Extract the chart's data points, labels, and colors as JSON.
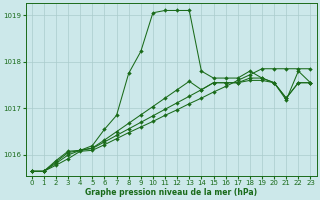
{
  "background_color": "#cce8ea",
  "grid_color": "#aacccc",
  "line_color": "#1a6b1a",
  "marker_color": "#1a6b1a",
  "title": "Graphe pression niveau de la mer (hPa)",
  "x_ticks": [
    0,
    1,
    2,
    3,
    4,
    5,
    6,
    7,
    8,
    9,
    10,
    11,
    12,
    13,
    14,
    15,
    16,
    17,
    18,
    19,
    20,
    21,
    22,
    23
  ],
  "y_ticks": [
    1016,
    1017,
    1018,
    1019
  ],
  "ylim": [
    1015.55,
    1019.25
  ],
  "xlim": [
    -0.5,
    23.5
  ],
  "s1": [
    1015.65,
    1015.65,
    1015.78,
    1015.92,
    1016.08,
    1016.1,
    1016.22,
    1016.35,
    1016.48,
    1016.6,
    1016.72,
    1016.85,
    1016.97,
    1017.1,
    1017.22,
    1017.35,
    1017.47,
    1017.6,
    1017.72,
    1017.85,
    1017.85,
    1017.85,
    1017.85,
    1017.85
  ],
  "s2": [
    1015.65,
    1015.65,
    1015.82,
    1016.0,
    1016.1,
    1016.14,
    1016.28,
    1016.42,
    1016.56,
    1016.7,
    1016.84,
    1016.98,
    1017.12,
    1017.26,
    1017.4,
    1017.55,
    1017.55,
    1017.55,
    1017.6,
    1017.6,
    1017.55,
    1017.22,
    1017.55,
    1017.55
  ],
  "s3": [
    1015.65,
    1015.65,
    1015.85,
    1016.05,
    1016.1,
    1016.15,
    1016.32,
    1016.5,
    1016.68,
    1016.86,
    1017.04,
    1017.22,
    1017.4,
    1017.58,
    1017.4,
    1017.55,
    1017.55,
    1017.55,
    1017.65,
    1017.65,
    1017.55,
    1017.22,
    1017.55,
    1017.55
  ],
  "s4": [
    1015.65,
    1015.65,
    1015.88,
    1016.08,
    1016.1,
    1016.2,
    1016.55,
    1016.85,
    1017.75,
    1018.22,
    1019.05,
    1019.1,
    1019.1,
    1019.1,
    1017.8,
    1017.65,
    1017.65,
    1017.65,
    1017.8,
    1017.65,
    1017.55,
    1017.18,
    1017.8,
    1017.55
  ]
}
